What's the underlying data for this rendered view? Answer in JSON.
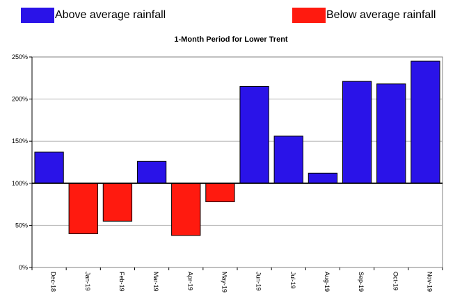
{
  "legend": {
    "above_label": "Above average rainfall",
    "below_label": "Below average rainfall"
  },
  "colors": {
    "above": "#2a13e8",
    "below": "#ff1a0f",
    "baseline": "#000000",
    "grid": "#b4b4b4"
  },
  "chart_data": {
    "type": "bar",
    "title": "1-Month Period for Lower Trent",
    "xlabel": "",
    "ylabel": "",
    "baseline": 100,
    "ylim": [
      0,
      250
    ],
    "yticks": [
      0,
      50,
      100,
      150,
      200,
      250
    ],
    "ytick_labels": [
      "0%",
      "50%",
      "100%",
      "150%",
      "200%",
      "250%"
    ],
    "grid": true,
    "legend_position": "top",
    "categories": [
      "Dec-18",
      "Jan-19",
      "Feb-19",
      "Mar-19",
      "Apr-19",
      "May-19",
      "Jun-19",
      "Jul-19",
      "Aug-19",
      "Sep-19",
      "Oct-19",
      "Nov-19"
    ],
    "values": [
      137,
      40,
      55,
      126,
      38,
      78,
      215,
      156,
      112,
      221,
      218,
      245
    ]
  }
}
